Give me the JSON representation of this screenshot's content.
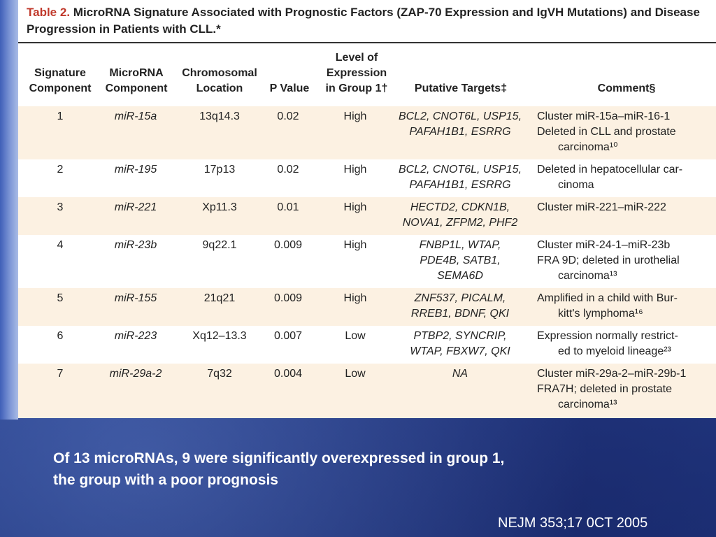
{
  "table": {
    "title_label": "Table 2.",
    "title_text": "MicroRNA Signature Associated with Prognostic Factors (ZAP-70 Expression and IgVH Mutations) and Disease Progression in Patients with CLL.*",
    "headers": {
      "signature": "Signature Component",
      "microrna": "MicroRNA Component",
      "chromosomal": "Chromosomal Location",
      "pvalue": "P Value",
      "level": "Level of Expression in Group 1†",
      "targets": "Putative Targets‡",
      "comment": "Comment§"
    },
    "rows": [
      {
        "num": "1",
        "mir": "miR-15a",
        "chr": "13q14.3",
        "p": "0.02",
        "level": "High",
        "targets": [
          "BCL2, CNOT6L, USP15,",
          "PAFAH1B1, ESRRG"
        ],
        "comment": [
          "Cluster miR-15a–miR-16-1",
          "Deleted in CLL and prostate",
          "carcinoma¹⁰"
        ]
      },
      {
        "num": "2",
        "mir": "miR-195",
        "chr": "17p13",
        "p": "0.02",
        "level": "High",
        "targets": [
          "BCL2, CNOT6L, USP15,",
          "PAFAH1B1, ESRRG"
        ],
        "comment": [
          "Deleted in hepatocellular car-",
          "cinoma"
        ]
      },
      {
        "num": "3",
        "mir": "miR-221",
        "chr": "Xp11.3",
        "p": "0.01",
        "level": "High",
        "targets": [
          "HECTD2, CDKN1B,",
          "NOVA1, ZFPM2, PHF2"
        ],
        "comment": [
          "Cluster miR-221–miR-222"
        ]
      },
      {
        "num": "4",
        "mir": "miR-23b",
        "chr": "9q22.1",
        "p": "0.009",
        "level": "High",
        "targets": [
          "FNBP1L, WTAP,",
          "PDE4B, SATB1,",
          "SEMA6D"
        ],
        "comment": [
          "Cluster miR-24-1–miR-23b",
          "FRA 9D; deleted in urothelial",
          "carcinoma¹³"
        ]
      },
      {
        "num": "5",
        "mir": "miR-155",
        "chr": "21q21",
        "p": "0.009",
        "level": "High",
        "targets": [
          "ZNF537, PICALM,",
          "RREB1, BDNF, QKI"
        ],
        "comment": [
          "Amplified in a child with Bur-",
          "kitt's lymphoma¹⁶"
        ]
      },
      {
        "num": "6",
        "mir": "miR-223",
        "chr": "Xq12–13.3",
        "p": "0.007",
        "level": "Low",
        "targets": [
          "PTBP2, SYNCRIP,",
          "WTAP, FBXW7, QKI"
        ],
        "comment": [
          "Expression normally restrict-",
          "ed to myeloid lineage²³"
        ]
      },
      {
        "num": "7",
        "mir": "miR-29a-2",
        "chr": "7q32",
        "p": "0.004",
        "level": "Low",
        "targets": [
          "NA"
        ],
        "comment": [
          "Cluster miR-29a-2–miR-29b-1",
          "FRA7H; deleted in prostate",
          "carcinoma¹³"
        ]
      }
    ]
  },
  "caption": [
    "Of 13 microRNAs, 9 were significantly overexpressed in group 1,",
    "the group with a poor prognosis"
  ],
  "citation": "NEJM 353;17  0CT 2005",
  "colors": {
    "title_label": "#c0392b",
    "odd_row": "#fcf1e2",
    "background": "#2c4a9a"
  }
}
